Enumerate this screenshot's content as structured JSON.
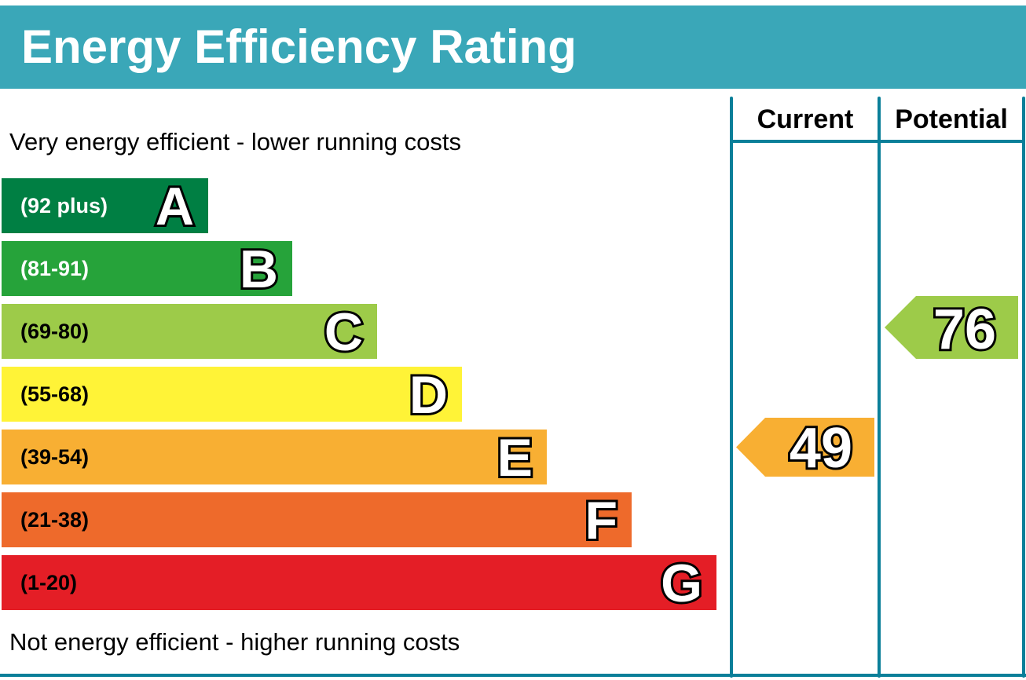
{
  "chart_data": {
    "type": "bar",
    "title": "Energy Efficiency Rating",
    "top_caption": "Very energy efficient - lower running costs",
    "bottom_caption": "Not energy efficient - higher running costs",
    "columns": [
      "Current",
      "Potential"
    ],
    "bands": [
      {
        "letter": "A",
        "range": "(92 plus)",
        "color": "#007f43",
        "text_color": "#ffffff"
      },
      {
        "letter": "B",
        "range": "(81-91)",
        "color": "#26a33a",
        "text_color": "#ffffff"
      },
      {
        "letter": "C",
        "range": "(69-80)",
        "color": "#9dcb49",
        "text_color": "#000000"
      },
      {
        "letter": "D",
        "range": "(55-68)",
        "color": "#fff337",
        "text_color": "#000000"
      },
      {
        "letter": "E",
        "range": "(39-54)",
        "color": "#f8af33",
        "text_color": "#000000"
      },
      {
        "letter": "F",
        "range": "(21-38)",
        "color": "#ee6a2b",
        "text_color": "#000000"
      },
      {
        "letter": "G",
        "range": "(1-20)",
        "color": "#e41e26",
        "text_color": "#000000"
      }
    ],
    "current": {
      "value": "49",
      "band": "E",
      "color": "#f8af33"
    },
    "potential": {
      "value": "76",
      "band": "C",
      "color": "#9dcb49"
    }
  }
}
